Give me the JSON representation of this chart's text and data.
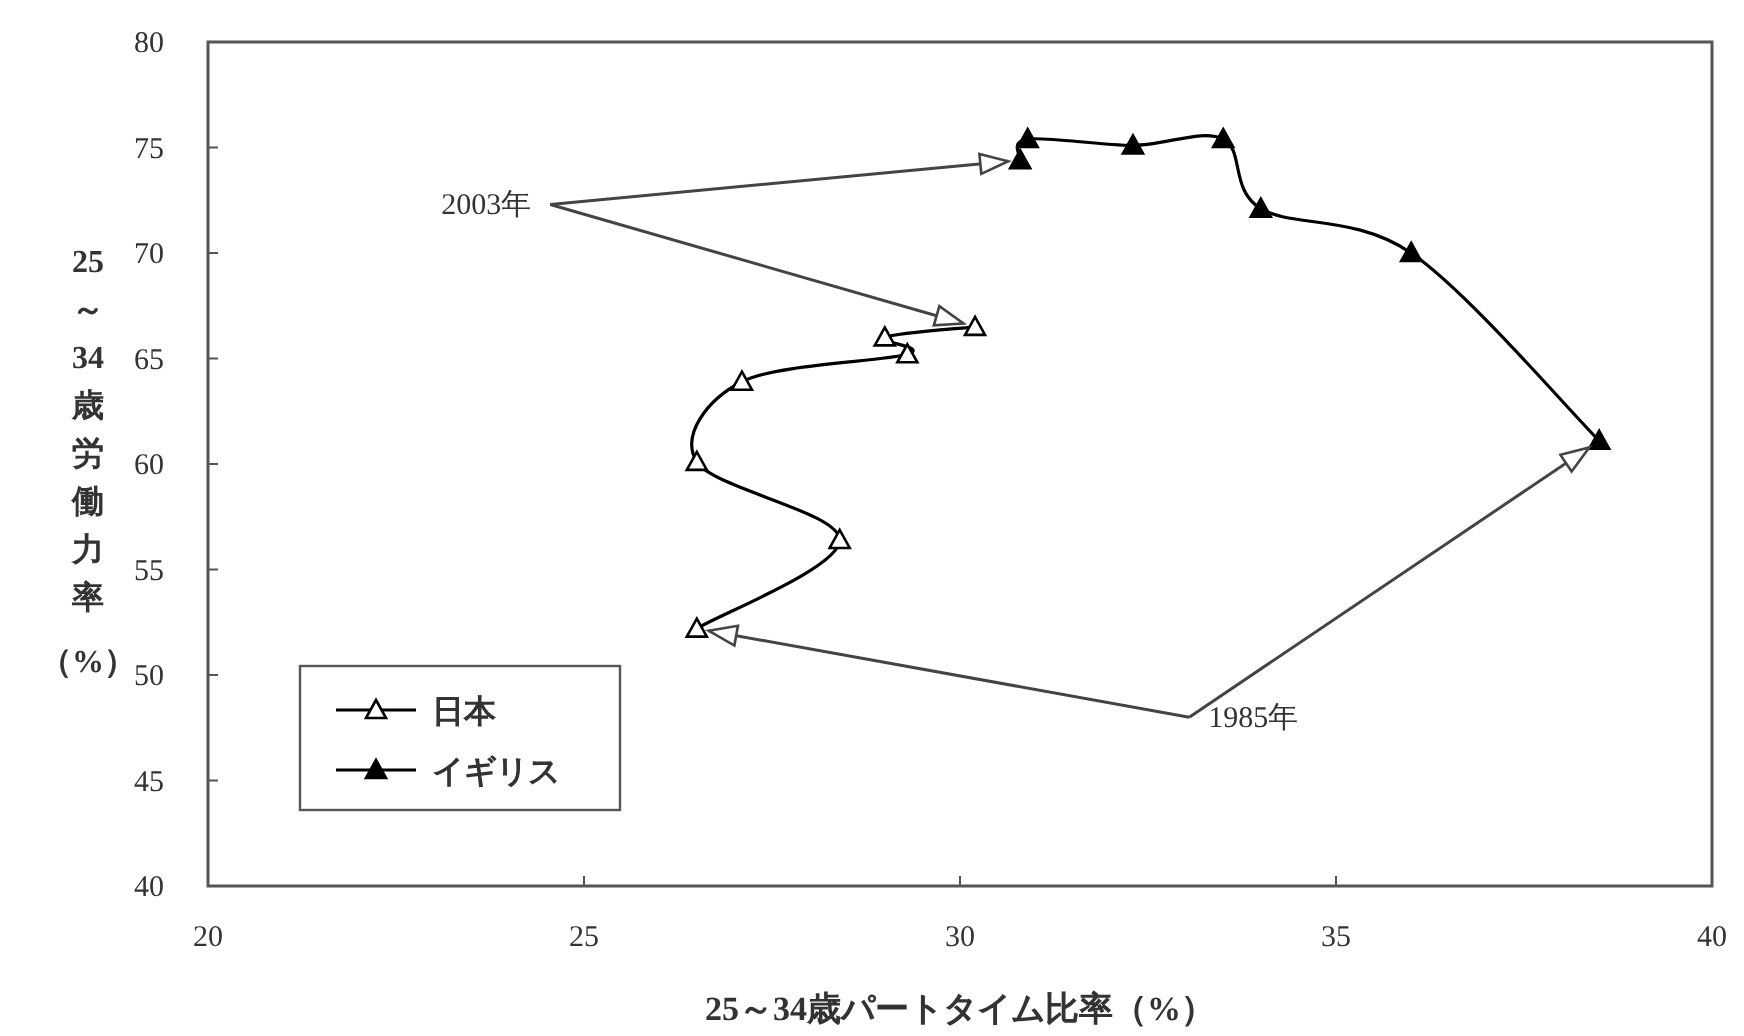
{
  "chart_data": {
    "type": "line",
    "xlabel": "25～34歳パートタイム比率（%）",
    "ylabel": "25～34歳労働力率（%）",
    "xlim": [
      20,
      40
    ],
    "xticks": [
      20,
      25,
      30,
      35,
      40
    ],
    "ylim": [
      40,
      80
    ],
    "yticks": [
      40,
      45,
      50,
      55,
      60,
      65,
      70,
      75,
      80
    ],
    "grid": false,
    "legend": "bottom left",
    "line_style": "solid",
    "annotations": [
      {
        "text": "2003年",
        "x": 30.2,
        "y": 66.5
      },
      {
        "text": "1985年",
        "x": 26.5,
        "y": 52.2
      }
    ],
    "series": [
      {
        "name": "日本",
        "color": "#000000",
        "marker": "triangle",
        "x": [
          26.5,
          28.4,
          26.5,
          27.1,
          29.3,
          29.0,
          30.2
        ],
        "values": [
          52.2,
          56.4,
          60.1,
          63.9,
          65.2,
          66.0,
          66.5
        ]
      },
      {
        "name": "イギリス",
        "color": "#000000",
        "marker": "triangle",
        "x": [
          38.5,
          36.0,
          34.0,
          33.5,
          32.3,
          30.9,
          30.8
        ],
        "values": [
          61.1,
          70.0,
          72.1,
          75.4,
          75.1,
          75.4,
          74.4
        ]
      }
    ]
  }
}
